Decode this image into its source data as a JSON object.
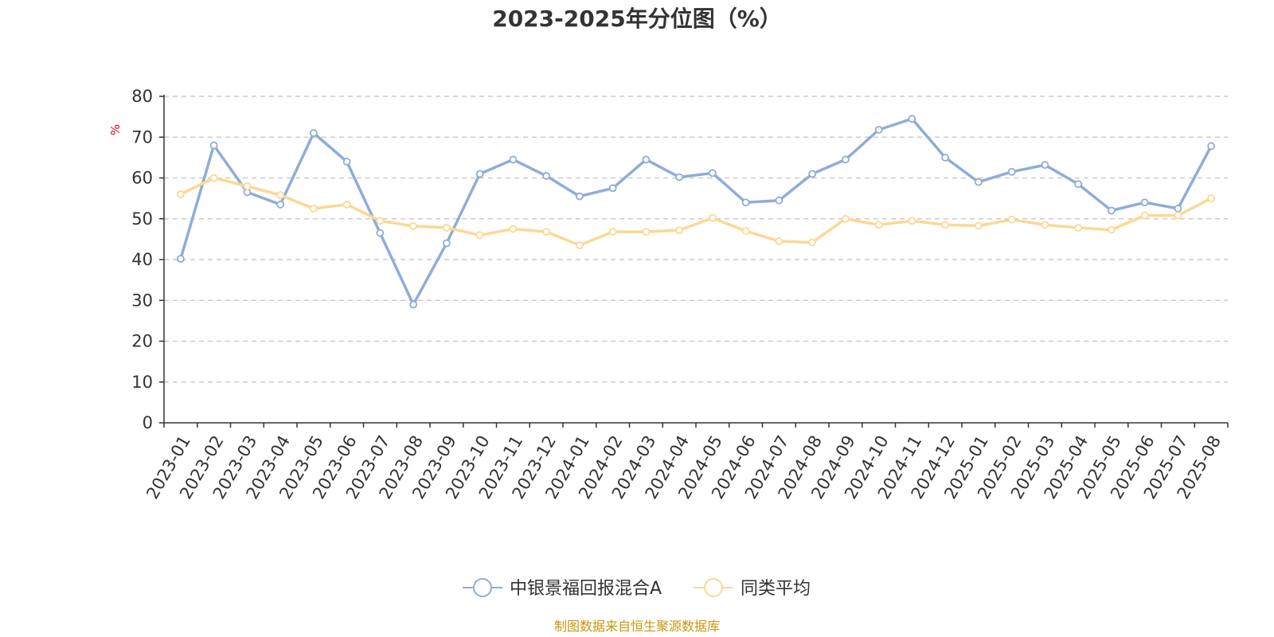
{
  "chart_data": {
    "type": "line",
    "title": "2023-2025年分位图（%）",
    "y_unit": "%",
    "ylim": [
      0,
      80
    ],
    "y_ticks": [
      0,
      10,
      20,
      30,
      40,
      50,
      60,
      70,
      80
    ],
    "grid": true,
    "legend_position": "bottom",
    "categories": [
      "2023-01",
      "2023-02",
      "2023-03",
      "2023-04",
      "2023-05",
      "2023-06",
      "2023-07",
      "2023-08",
      "2023-09",
      "2023-10",
      "2023-11",
      "2023-12",
      "2024-01",
      "2024-02",
      "2024-03",
      "2024-04",
      "2024-05",
      "2024-06",
      "2024-07",
      "2024-08",
      "2024-09",
      "2024-10",
      "2024-11",
      "2024-12",
      "2025-01",
      "2025-02",
      "2025-03",
      "2025-04",
      "2025-05",
      "2025-06",
      "2025-07",
      "2025-08"
    ],
    "series": [
      {
        "name": "中银景福回报混合A",
        "color": "#8eadd8",
        "values": [
          40.2,
          68.0,
          56.5,
          53.5,
          71.0,
          64.0,
          46.5,
          29.0,
          44.0,
          61.0,
          64.5,
          60.5,
          55.5,
          57.5,
          64.5,
          60.2,
          61.2,
          54.0,
          54.5,
          61.0,
          64.5,
          71.8,
          74.5,
          65.0,
          59.0,
          61.5,
          63.2,
          58.5,
          52.0,
          54.0,
          52.5,
          67.8
        ]
      },
      {
        "name": "同类平均",
        "color": "#fcd894",
        "values": [
          56.0,
          60.0,
          58.0,
          55.8,
          52.5,
          53.5,
          49.5,
          48.2,
          47.8,
          46.0,
          47.5,
          46.8,
          43.5,
          46.8,
          46.8,
          47.2,
          50.2,
          47.0,
          44.5,
          44.2,
          50.0,
          48.5,
          49.5,
          48.5,
          48.3,
          49.8,
          48.5,
          47.8,
          47.3,
          50.8,
          50.8,
          55.0
        ]
      }
    ],
    "source": "制图数据来自恒生聚源数据库",
    "source_color": "#c8960c"
  }
}
